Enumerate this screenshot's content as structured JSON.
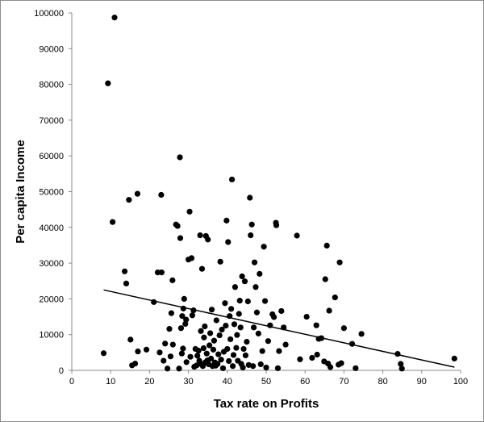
{
  "chart_data": {
    "type": "scatter",
    "xlabel": "Tax rate on Profits",
    "ylabel": "Per capita Income",
    "xlim": [
      0,
      100
    ],
    "ylim": [
      0,
      100000
    ],
    "x_ticks": [
      0,
      10,
      20,
      30,
      40,
      50,
      60,
      70,
      80,
      90,
      100
    ],
    "y_ticks": [
      0,
      10000,
      20000,
      30000,
      40000,
      50000,
      60000,
      70000,
      80000,
      90000,
      100000
    ],
    "grid": false,
    "legend": "none",
    "marker_color": "#000000",
    "trendline": {
      "type": "linear",
      "x": [
        8.2,
        98.4
      ],
      "y": [
        22500,
        900
      ]
    },
    "points": [
      [
        11.0,
        98700
      ],
      [
        9.3,
        80300
      ],
      [
        10.5,
        41500
      ],
      [
        14.7,
        47700
      ],
      [
        16.9,
        49400
      ],
      [
        8.2,
        4800
      ],
      [
        13.6,
        27700
      ],
      [
        14.0,
        24300
      ],
      [
        15.1,
        8600
      ],
      [
        15.5,
        1400
      ],
      [
        16.3,
        1900
      ],
      [
        17.0,
        5300
      ],
      [
        19.2,
        5800
      ],
      [
        21.1,
        19100
      ],
      [
        22.1,
        27400
      ],
      [
        22.6,
        5000
      ],
      [
        23.0,
        49100
      ],
      [
        23.1,
        27400
      ],
      [
        23.6,
        2700
      ],
      [
        24.0,
        7500
      ],
      [
        24.6,
        500
      ],
      [
        25.1,
        11600
      ],
      [
        25.4,
        3900
      ],
      [
        25.6,
        16000
      ],
      [
        25.9,
        25200
      ],
      [
        26.0,
        7200
      ],
      [
        26.8,
        40800
      ],
      [
        27.2,
        40400
      ],
      [
        27.6,
        500
      ],
      [
        27.8,
        59600
      ],
      [
        27.9,
        37000
      ],
      [
        28.1,
        11800
      ],
      [
        28.3,
        4700
      ],
      [
        28.4,
        15200
      ],
      [
        28.6,
        6100
      ],
      [
        28.7,
        17300
      ],
      [
        28.9,
        20000
      ],
      [
        29.2,
        13000
      ],
      [
        29.4,
        14200
      ],
      [
        29.5,
        2300
      ],
      [
        30.0,
        31000
      ],
      [
        30.3,
        44400
      ],
      [
        30.5,
        3800
      ],
      [
        30.8,
        31400
      ],
      [
        31.0,
        15400
      ],
      [
        31.3,
        16800
      ],
      [
        31.5,
        1000
      ],
      [
        31.8,
        6000
      ],
      [
        32.1,
        1400
      ],
      [
        32.3,
        4100
      ],
      [
        32.6,
        5500
      ],
      [
        32.8,
        2700
      ],
      [
        33.0,
        37800
      ],
      [
        33.2,
        11000
      ],
      [
        33.3,
        1700
      ],
      [
        33.5,
        28400
      ],
      [
        33.7,
        1200
      ],
      [
        33.9,
        6200
      ],
      [
        34.0,
        9200
      ],
      [
        34.2,
        12300
      ],
      [
        34.4,
        2300
      ],
      [
        34.5,
        37600
      ],
      [
        34.7,
        4700
      ],
      [
        34.9,
        2800
      ],
      [
        35.0,
        36600
      ],
      [
        35.2,
        1700
      ],
      [
        35.4,
        7000
      ],
      [
        35.6,
        10400
      ],
      [
        35.8,
        3300
      ],
      [
        36.0,
        17000
      ],
      [
        36.2,
        1200
      ],
      [
        36.4,
        5800
      ],
      [
        36.6,
        8300
      ],
      [
        36.8,
        2200
      ],
      [
        37.0,
        1300
      ],
      [
        37.2,
        14000
      ],
      [
        37.5,
        1800
      ],
      [
        37.7,
        4500
      ],
      [
        38.0,
        9800
      ],
      [
        38.2,
        30400
      ],
      [
        38.4,
        3000
      ],
      [
        38.6,
        11400
      ],
      [
        38.9,
        600
      ],
      [
        39.1,
        5200
      ],
      [
        39.4,
        18800
      ],
      [
        39.6,
        12500
      ],
      [
        39.8,
        41900
      ],
      [
        40.0,
        6000
      ],
      [
        40.2,
        35900
      ],
      [
        40.4,
        2600
      ],
      [
        40.6,
        15200
      ],
      [
        40.8,
        8700
      ],
      [
        41.0,
        17200
      ],
      [
        41.2,
        53400
      ],
      [
        41.4,
        1200
      ],
      [
        41.6,
        4300
      ],
      [
        41.8,
        12900
      ],
      [
        42.0,
        23300
      ],
      [
        42.3,
        6300
      ],
      [
        42.5,
        9900
      ],
      [
        42.7,
        2700
      ],
      [
        43.0,
        15800
      ],
      [
        43.2,
        19500
      ],
      [
        43.4,
        12000
      ],
      [
        43.6,
        1800
      ],
      [
        43.8,
        26300
      ],
      [
        44.0,
        800
      ],
      [
        44.2,
        6000
      ],
      [
        44.5,
        24900
      ],
      [
        44.7,
        4200
      ],
      [
        45.0,
        8000
      ],
      [
        45.3,
        19300
      ],
      [
        45.5,
        1500
      ],
      [
        45.8,
        48300
      ],
      [
        46.0,
        37800
      ],
      [
        46.3,
        40800
      ],
      [
        46.6,
        1200
      ],
      [
        46.8,
        12000
      ],
      [
        47.0,
        30200
      ],
      [
        47.3,
        23300
      ],
      [
        47.6,
        16200
      ],
      [
        48.0,
        10300
      ],
      [
        48.3,
        27000
      ],
      [
        48.6,
        1700
      ],
      [
        49.0,
        5400
      ],
      [
        49.4,
        34600
      ],
      [
        49.7,
        19400
      ],
      [
        50.0,
        800
      ],
      [
        50.5,
        8200
      ],
      [
        51.0,
        12600
      ],
      [
        51.6,
        15700
      ],
      [
        52.0,
        14900
      ],
      [
        52.5,
        41300
      ],
      [
        52.6,
        40600
      ],
      [
        53.0,
        600
      ],
      [
        53.3,
        5400
      ],
      [
        53.9,
        16600
      ],
      [
        54.5,
        12000
      ],
      [
        55.0,
        7200
      ],
      [
        57.9,
        37700
      ],
      [
        58.7,
        3100
      ],
      [
        60.4,
        15000
      ],
      [
        61.8,
        3500
      ],
      [
        62.9,
        12600
      ],
      [
        63.1,
        4400
      ],
      [
        63.5,
        8800
      ],
      [
        64.2,
        9000
      ],
      [
        64.9,
        2500
      ],
      [
        65.2,
        25500
      ],
      [
        65.6,
        34900
      ],
      [
        65.9,
        1900
      ],
      [
        66.2,
        16700
      ],
      [
        66.5,
        900
      ],
      [
        67.7,
        20400
      ],
      [
        68.6,
        1600
      ],
      [
        68.9,
        30200
      ],
      [
        69.3,
        2000
      ],
      [
        70.0,
        11800
      ],
      [
        72.1,
        7400
      ],
      [
        73.0,
        600
      ],
      [
        74.5,
        10200
      ],
      [
        83.8,
        4600
      ],
      [
        84.6,
        1800
      ],
      [
        84.9,
        500
      ],
      [
        98.4,
        3300
      ]
    ]
  }
}
